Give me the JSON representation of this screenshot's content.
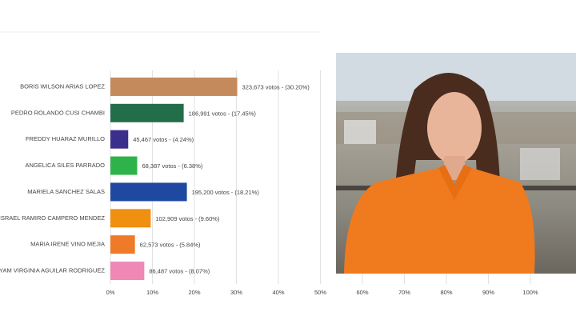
{
  "chart_data": {
    "type": "bar",
    "orientation": "horizontal",
    "categories": [
      "BORIS WILSON ARIAS LOPEZ",
      "PEDRO ROLANDO CUSI CHAMBI",
      "FREDDY HUARAZ MURILLO",
      "ANGELICA SILES PARRADO",
      "MARIELA SANCHEZ SALAS",
      "ISRAEL RAMIRO CAMPERO MENDEZ",
      "MARIA IRENE VINO MEJIA",
      "MIRYAM VIRGINIA AGUILAR RODRIGUEZ"
    ],
    "values": [
      30.2,
      17.45,
      4.24,
      6.38,
      18.21,
      9.6,
      5.84,
      8.07
    ],
    "value_labels": [
      "323,673 votos - (30.20%)",
      "186,991 votos - (17.45%)",
      "45,467 votos - (4.24%)",
      "68,387 votos - (6.38%)",
      "195,200 votos - (18.21%)",
      "102,909 votos - (9.60%)",
      "62,573 votos - (5.84%)",
      "86,487 votos - (8.07%)"
    ],
    "colors": [
      "#c48a5c",
      "#236e4a",
      "#3a2f8c",
      "#2db34a",
      "#1f49a0",
      "#f09010",
      "#ef7a28",
      "#ef88b4"
    ],
    "xlim": [
      0,
      100
    ],
    "xticks": [
      {
        "value": 0,
        "label": "0%"
      },
      {
        "value": 10,
        "label": "10%"
      },
      {
        "value": 20,
        "label": "20%"
      },
      {
        "value": 30,
        "label": "30%"
      },
      {
        "value": 40,
        "label": "40%"
      },
      {
        "value": 50,
        "label": "50%"
      },
      {
        "value": 60,
        "label": "60%"
      },
      {
        "value": 70,
        "label": "70%"
      },
      {
        "value": 80,
        "label": "80%"
      },
      {
        "value": 90,
        "label": "90%"
      },
      {
        "value": 100,
        "label": "100%"
      }
    ],
    "grid": true
  }
}
